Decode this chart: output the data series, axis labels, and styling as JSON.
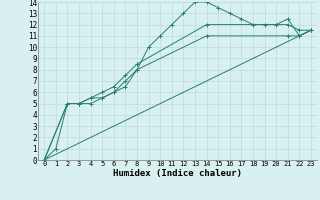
{
  "xlabel": "Humidex (Indice chaleur)",
  "bg_color": "#d8f0ef",
  "line_color": "#2a7d6e",
  "grid_color": "#b8dcd8",
  "xlim": [
    -0.5,
    23.5
  ],
  "ylim": [
    0,
    14
  ],
  "xticks": [
    0,
    1,
    2,
    3,
    4,
    5,
    6,
    7,
    8,
    9,
    10,
    11,
    12,
    13,
    14,
    15,
    16,
    17,
    18,
    19,
    20,
    21,
    22,
    23
  ],
  "yticks": [
    0,
    1,
    2,
    3,
    4,
    5,
    6,
    7,
    8,
    9,
    10,
    11,
    12,
    13,
    14
  ],
  "series": [
    {
      "x": [
        0,
        1,
        2,
        3,
        4,
        5,
        6,
        7,
        8,
        9,
        10,
        11,
        12,
        13,
        14,
        15,
        16,
        17,
        18,
        19,
        20,
        21,
        22,
        23
      ],
      "y": [
        0,
        1,
        5,
        5,
        5,
        5.5,
        6,
        6.5,
        8,
        10,
        11,
        12,
        13,
        14,
        14,
        13.5,
        13,
        12.5,
        12,
        12,
        12,
        12.5,
        11,
        11.5
      ]
    },
    {
      "x": [
        0,
        2,
        3,
        4,
        5,
        6,
        7,
        8,
        14,
        21,
        22,
        23
      ],
      "y": [
        0,
        5,
        5,
        5.5,
        5.5,
        6,
        7,
        8,
        11,
        11,
        11,
        11.5
      ]
    },
    {
      "x": [
        0,
        2,
        3,
        4,
        5,
        6,
        7,
        8,
        14,
        21,
        22,
        23
      ],
      "y": [
        0,
        5,
        5,
        5.5,
        6,
        6.5,
        7.5,
        8.5,
        12,
        12,
        11.5,
        11.5
      ]
    },
    {
      "x": [
        0,
        23
      ],
      "y": [
        0,
        11.5
      ]
    }
  ]
}
